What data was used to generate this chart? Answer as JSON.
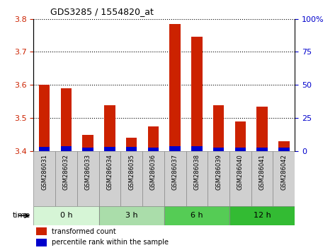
{
  "title": "GDS3285 / 1554820_at",
  "samples": [
    "GSM286031",
    "GSM286032",
    "GSM286033",
    "GSM286034",
    "GSM286035",
    "GSM286036",
    "GSM286037",
    "GSM286038",
    "GSM286039",
    "GSM286040",
    "GSM286041",
    "GSM286042"
  ],
  "red_values": [
    3.6,
    3.59,
    3.45,
    3.54,
    3.44,
    3.475,
    3.785,
    3.745,
    3.54,
    3.49,
    3.535,
    3.43
  ],
  "blue_values": [
    3.413,
    3.415,
    3.412,
    3.413,
    3.413,
    3.412,
    3.415,
    3.415,
    3.412,
    3.412,
    3.412,
    3.411
  ],
  "baseline": 3.4,
  "ylim_left": [
    3.4,
    3.8
  ],
  "yticks_left": [
    3.4,
    3.5,
    3.6,
    3.7,
    3.8
  ],
  "yticks_right": [
    0,
    25,
    50,
    75,
    100
  ],
  "ylim_right": [
    0,
    100
  ],
  "time_groups": [
    {
      "label": "0 h",
      "start": 0,
      "end": 3,
      "color": "#d6f5d6"
    },
    {
      "label": "3 h",
      "start": 3,
      "end": 6,
      "color": "#aaddaa"
    },
    {
      "label": "6 h",
      "start": 6,
      "end": 9,
      "color": "#55cc55"
    },
    {
      "label": "12 h",
      "start": 9,
      "end": 12,
      "color": "#33bb33"
    }
  ],
  "bar_color_red": "#cc2200",
  "bar_color_blue": "#0000cc",
  "bar_width": 0.5,
  "grid_color": "black",
  "tick_color_left": "#cc2200",
  "tick_color_right": "#0000cc",
  "legend_red": "transformed count",
  "legend_blue": "percentile rank within the sample",
  "time_label": "time",
  "sample_box_color": "#d0d0d0",
  "sample_box_border": "#888888"
}
